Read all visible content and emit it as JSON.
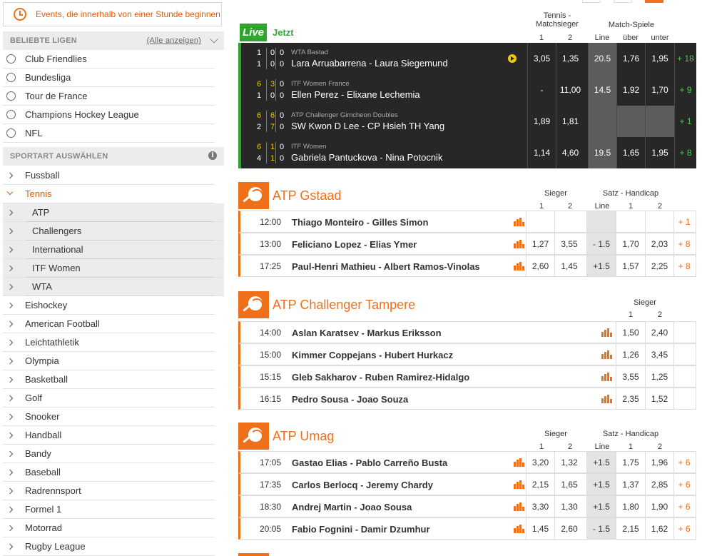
{
  "events_button": "Events, die innerhalb von einer Stunde beginnen",
  "popular": {
    "title": "BELIEBTE LIGEN",
    "show_all": "(Alle anzeigen)",
    "items": [
      "Club Friendlies",
      "Bundesliga",
      "Tour de France",
      "Champions Hockey League",
      "NFL"
    ]
  },
  "sports": {
    "title": "SPORTART AUSWÄHLEN",
    "items": [
      {
        "label": "Fussball"
      },
      {
        "label": "Tennis",
        "active": true
      },
      {
        "label": "ATP",
        "sub": true
      },
      {
        "label": "Challengers",
        "sub": true
      },
      {
        "label": "International",
        "sub": true
      },
      {
        "label": "ITF Women",
        "sub": true
      },
      {
        "label": "WTA",
        "sub": true
      },
      {
        "label": "Eishockey"
      },
      {
        "label": "American Football"
      },
      {
        "label": "Leichtathletik"
      },
      {
        "label": "Olympia"
      },
      {
        "label": "Basketball"
      },
      {
        "label": "Golf"
      },
      {
        "label": "Snooker"
      },
      {
        "label": "Handball"
      },
      {
        "label": "Bandy"
      },
      {
        "label": "Baseball"
      },
      {
        "label": "Radrennsport"
      },
      {
        "label": "Formel 1"
      },
      {
        "label": "Motorrad"
      },
      {
        "label": "Rugby League"
      }
    ]
  },
  "live": {
    "badge": "Live",
    "now": "Jetzt",
    "hdr_winner": "Tennis -",
    "hdr_winner2": "Matchsieger",
    "hdr_games": "Match-Spiele",
    "col_1": "1",
    "col_2": "2",
    "col_line": "Line",
    "col_over": "über",
    "col_under": "unter",
    "rows": [
      {
        "s1": [
          "1",
          "0",
          "0"
        ],
        "s2": [
          "1",
          "0",
          "0"
        ],
        "league": "WTA Bastad",
        "match": "Lara Arruabarrena - Laura Siegemund",
        "o1": "3,05",
        "o2": "1,35",
        "line": "20.5",
        "over": "1,76",
        "under": "1,95",
        "more": "+ 18",
        "play": true
      },
      {
        "s1": [
          "6",
          "3",
          "0"
        ],
        "s2": [
          "1",
          "0",
          "0"
        ],
        "league": "ITF Women France",
        "match": "Ellen Perez - Elixane Lechemia",
        "o1": "-",
        "o2": "11,00",
        "line": "14.5",
        "over": "1,92",
        "under": "1,70",
        "more": "+ 9",
        "play": false
      },
      {
        "s1": [
          "6",
          "6",
          "0"
        ],
        "s2": [
          "2",
          "7",
          "0"
        ],
        "league": "ATP Challenger Gimcheon Doubles",
        "match": "SW Kwon D Lee - CP Hsieh TH Yang",
        "o1": "1,89",
        "o2": "1,81",
        "line": "",
        "over": "",
        "under": "",
        "more": "+ 1",
        "play": false
      },
      {
        "s1": [
          "6",
          "1",
          "0"
        ],
        "s2": [
          "4",
          "1",
          "0"
        ],
        "league": "ITF Women",
        "match": "Gabriela Pantuckova - Nina Potocnik",
        "o1": "1,14",
        "o2": "4,60",
        "line": "19.5",
        "over": "1,65",
        "under": "1,95",
        "more": "+ 8",
        "play": false
      }
    ]
  },
  "sections": [
    {
      "title": "ATP Gstaad",
      "hdr_winner": "Sieger",
      "hdr_hc": "Satz - Handicap",
      "col_1": "1",
      "col_2": "2",
      "col_line": "Line",
      "col_hc1": "1",
      "col_hc2": "2",
      "rows": [
        {
          "time": "12:00",
          "match": "Thiago Monteiro - Gilles Simon",
          "o1": "",
          "o2": "",
          "line": "",
          "h1": "",
          "h2": "",
          "more": "+ 1"
        },
        {
          "time": "13:00",
          "match": "Feliciano Lopez - Elias Ymer",
          "o1": "1,27",
          "o2": "3,55",
          "line": "- 1.5",
          "h1": "1,70",
          "h2": "2,03",
          "more": "+ 8"
        },
        {
          "time": "17:25",
          "match": "Paul-Henri Mathieu - Albert Ramos-Vinolas",
          "o1": "2,60",
          "o2": "1,45",
          "line": "+1.5",
          "h1": "1,57",
          "h2": "2,25",
          "more": "+ 8"
        }
      ]
    },
    {
      "title": "ATP Challenger Tampere",
      "hdr_winner": "Sieger",
      "col_1": "1",
      "col_2": "2",
      "rows": [
        {
          "time": "14:00",
          "match": "Aslan Karatsev - Markus Eriksson",
          "o1": "1,50",
          "o2": "2,40"
        },
        {
          "time": "15:00",
          "match": "Kimmer Coppejans - Hubert Hurkacz",
          "o1": "1,26",
          "o2": "3,45"
        },
        {
          "time": "15:15",
          "match": "Gleb Sakharov - Ruben Ramirez-Hidalgo",
          "o1": "3,55",
          "o2": "1,25"
        },
        {
          "time": "16:15",
          "match": "Pedro Sousa - Joao Souza",
          "o1": "2,35",
          "o2": "1,52"
        }
      ]
    },
    {
      "title": "ATP Umag",
      "hdr_winner": "Sieger",
      "hdr_hc": "Satz - Handicap",
      "col_1": "1",
      "col_2": "2",
      "col_line": "Line",
      "col_hc1": "1",
      "col_hc2": "2",
      "rows": [
        {
          "time": "17:05",
          "match": "Gastao Elias - Pablo Carreño Busta",
          "o1": "3,20",
          "o2": "1,32",
          "line": "+1.5",
          "h1": "1,75",
          "h2": "1,96",
          "more": "+ 6"
        },
        {
          "time": "17:35",
          "match": "Carlos Berlocq - Jeremy Chardy",
          "o1": "2,15",
          "o2": "1,65",
          "line": "+1.5",
          "h1": "1,37",
          "h2": "2,85",
          "more": "+ 6"
        },
        {
          "time": "18:30",
          "match": "Andrej Martin - Joao Sousa",
          "o1": "3,30",
          "o2": "1,30",
          "line": "+1.5",
          "h1": "1,80",
          "h2": "1,90",
          "more": "+ 6"
        },
        {
          "time": "20:05",
          "match": "Fabio Fognini - Damir Dzumhur",
          "o1": "1,45",
          "o2": "2,60",
          "line": "- 1.5",
          "h1": "2,15",
          "h2": "1,62",
          "more": "+ 6"
        }
      ]
    }
  ]
}
